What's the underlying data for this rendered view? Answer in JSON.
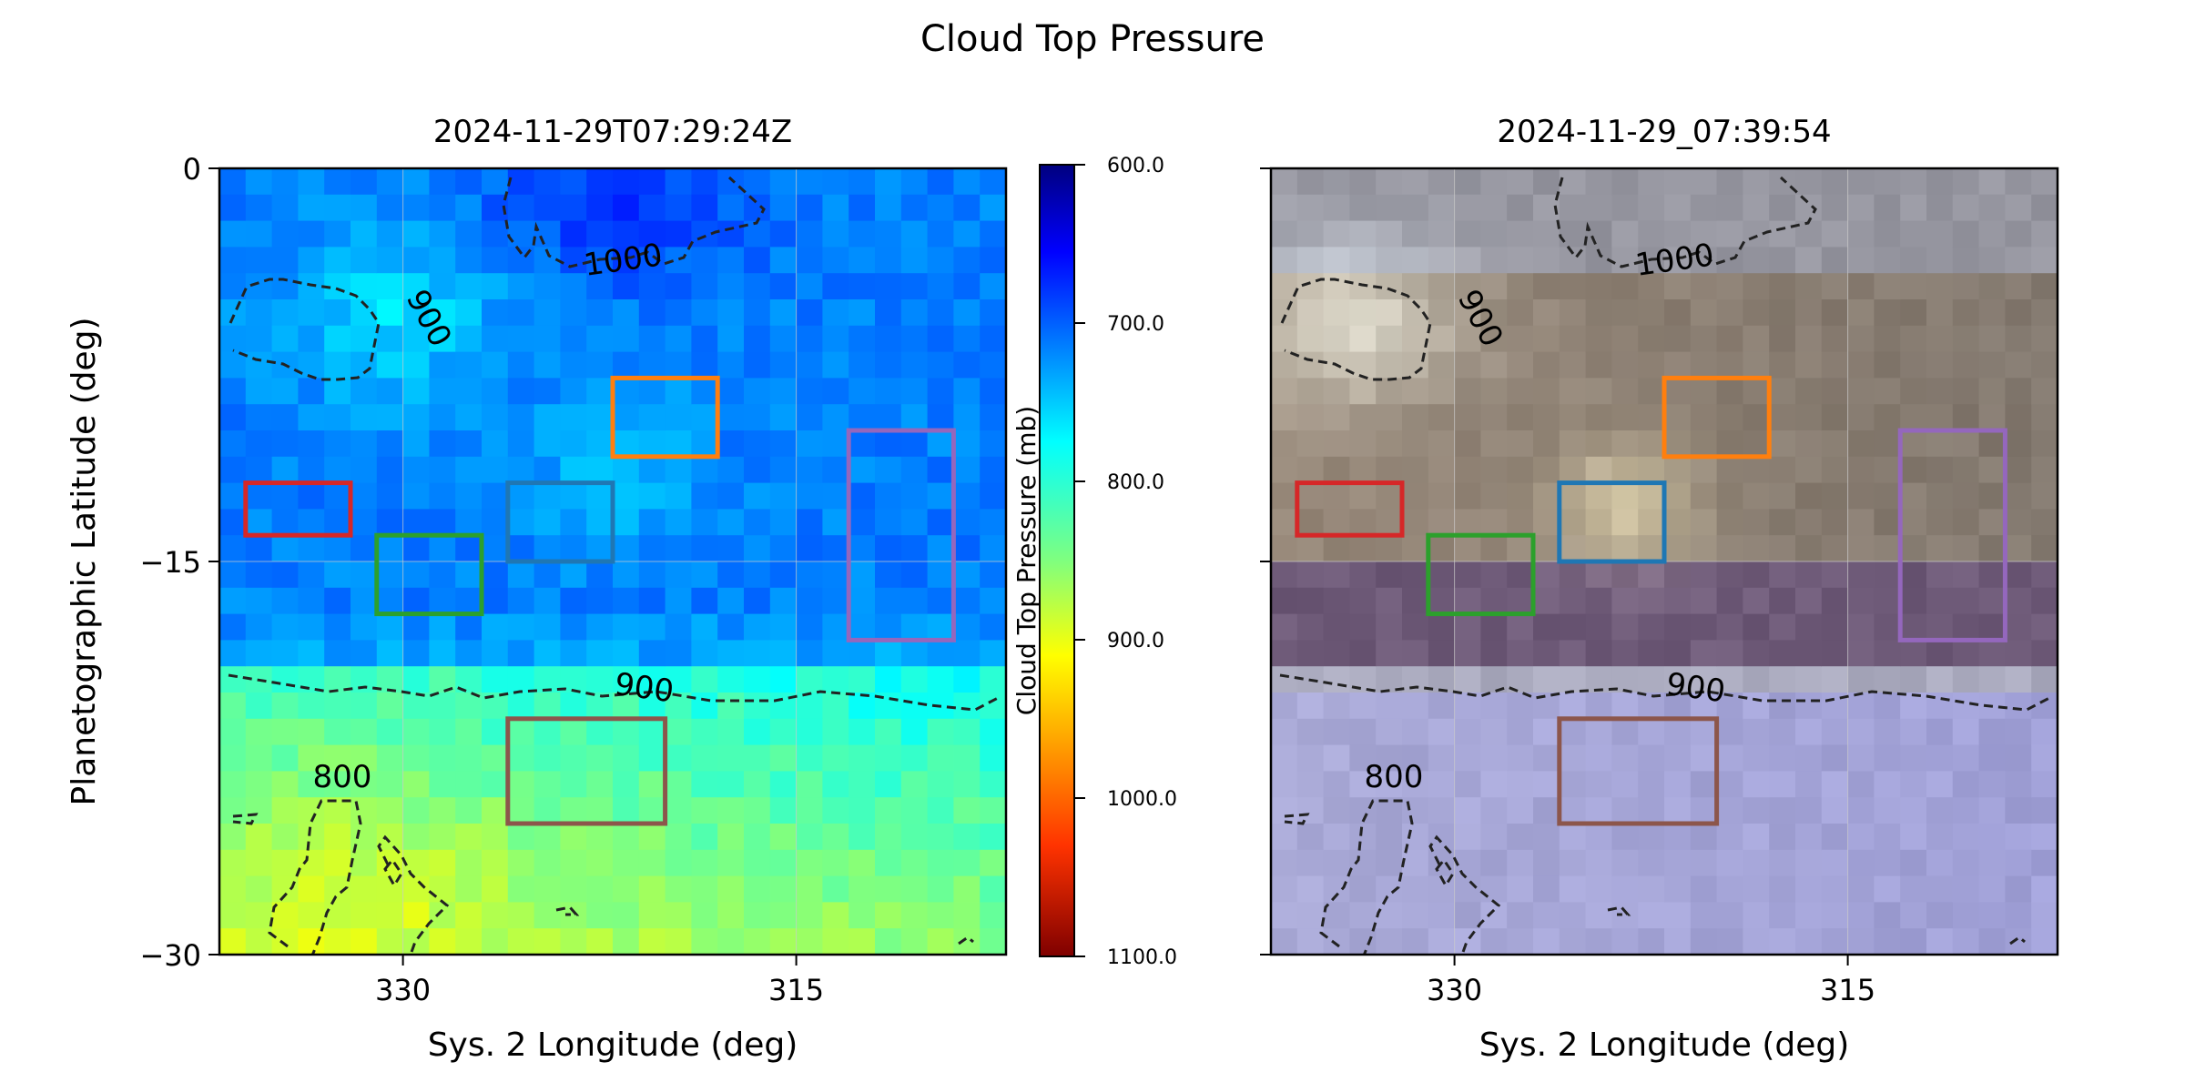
{
  "figure": {
    "title": "Cloud Top Pressure"
  },
  "chart_data": [
    {
      "type": "heatmap",
      "title": "2024-11-29T07:29:24Z",
      "xlabel": "Sys. 2 Longitude (deg)",
      "ylabel": "Planetographic Latitude (deg)",
      "xlim": [
        337,
        307
      ],
      "ylim": [
        -30,
        0
      ],
      "xticks": [
        330,
        315
      ],
      "yticks": [
        0,
        -15,
        -30
      ],
      "ytick_labels": [
        "0",
        "−15",
        "−30"
      ],
      "grid": true,
      "colormap": "jet_r",
      "contour_levels": [
        800,
        900,
        1000
      ],
      "contour_labels": [
        "800",
        "900",
        "1000"
      ],
      "colorbar": {
        "label": "Cloud Top Pressure (mb)",
        "min": 600,
        "max": 1100,
        "ticks": [
          "600.0",
          "700.0",
          "800.0",
          "900.0",
          "1000.0",
          "1100.0"
        ]
      },
      "regions": [
        {
          "color": "#d62728",
          "lon": [
            336,
            332
          ],
          "lat": [
            -12,
            -14
          ]
        },
        {
          "color": "#2ca02c",
          "lon": [
            331,
            327
          ],
          "lat": [
            -14,
            -17
          ]
        },
        {
          "color": "#1f77b4",
          "lon": [
            326,
            322
          ],
          "lat": [
            -12,
            -15
          ]
        },
        {
          "color": "#ff7f0e",
          "lon": [
            322,
            318
          ],
          "lat": [
            -8,
            -11
          ]
        },
        {
          "color": "#9467bd",
          "lon": [
            313,
            309
          ],
          "lat": [
            -10,
            -18
          ]
        },
        {
          "color": "#8c564b",
          "lon": [
            326,
            320
          ],
          "lat": [
            -21,
            -25
          ]
        }
      ]
    },
    {
      "type": "heatmap",
      "title": "2024-11-29_07:39:54",
      "xlabel": "Sys. 2 Longitude (deg)",
      "xlim": [
        337,
        307
      ],
      "ylim": [
        -30,
        0
      ],
      "xticks": [
        330,
        315
      ],
      "grid": true,
      "image": "color-composite",
      "contour_levels": [
        800,
        900,
        1000
      ],
      "contour_labels": [
        "800",
        "900",
        "1000"
      ],
      "regions": [
        {
          "color": "#d62728",
          "lon": [
            336,
            332
          ],
          "lat": [
            -12,
            -14
          ]
        },
        {
          "color": "#2ca02c",
          "lon": [
            331,
            327
          ],
          "lat": [
            -14,
            -17
          ]
        },
        {
          "color": "#1f77b4",
          "lon": [
            326,
            322
          ],
          "lat": [
            -12,
            -15
          ]
        },
        {
          "color": "#ff7f0e",
          "lon": [
            322,
            318
          ],
          "lat": [
            -8,
            -11
          ]
        },
        {
          "color": "#9467bd",
          "lon": [
            313,
            309
          ],
          "lat": [
            -10,
            -18
          ]
        },
        {
          "color": "#8c564b",
          "lon": [
            326,
            320
          ],
          "lat": [
            -21,
            -25
          ]
        }
      ]
    }
  ]
}
